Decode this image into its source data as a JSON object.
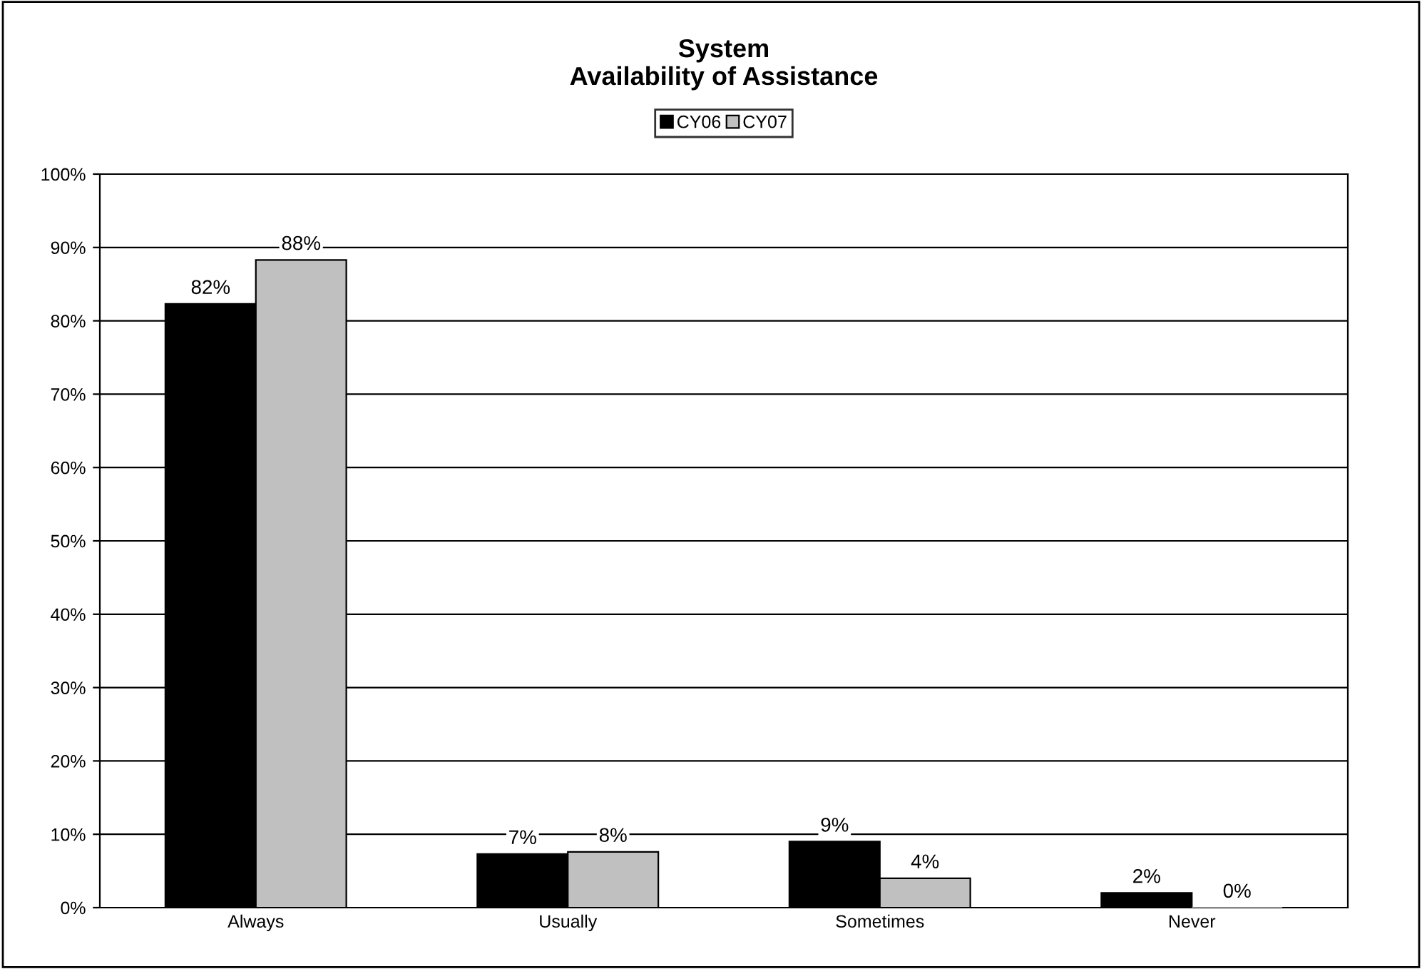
{
  "chart_data": {
    "type": "bar",
    "title": "System\nAvailability of Assistance",
    "categories": [
      "Always",
      "Usually",
      "Sometimes",
      "Never"
    ],
    "series": [
      {
        "name": "CY06",
        "color": "#000000",
        "values": [
          82.3,
          7.3,
          9,
          2
        ],
        "value_labels": [
          "82%",
          "7%",
          "9%",
          "2%"
        ]
      },
      {
        "name": "CY07",
        "color": "#c0c0c0",
        "values": [
          88.3,
          7.6,
          4,
          0
        ],
        "value_labels": [
          "88%",
          "8%",
          "4%",
          "0%"
        ]
      }
    ],
    "ylim": [
      0,
      100
    ],
    "yticks": [
      {
        "value": 0,
        "label": "0%"
      },
      {
        "value": 10,
        "label": "10%"
      },
      {
        "value": 20,
        "label": "20%"
      },
      {
        "value": 30,
        "label": "30%"
      },
      {
        "value": 40,
        "label": "40%"
      },
      {
        "value": 50,
        "label": "50%"
      },
      {
        "value": 60,
        "label": "60%"
      },
      {
        "value": 70,
        "label": "70%"
      },
      {
        "value": 80,
        "label": "80%"
      },
      {
        "value": 90,
        "label": "90%"
      },
      {
        "value": 100,
        "label": "100%"
      }
    ],
    "grid": "y",
    "legend": "top"
  }
}
